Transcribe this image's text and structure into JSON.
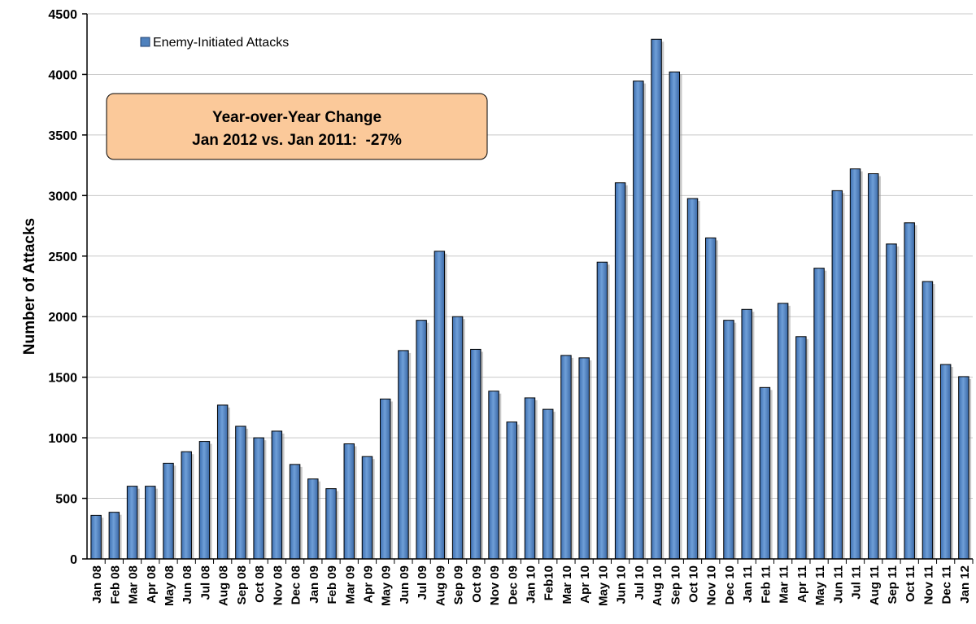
{
  "chart_data": {
    "type": "bar",
    "ylabel": "Number of Attacks",
    "ylim": [
      0,
      4500
    ],
    "yticks": [
      "0",
      "500",
      "1000",
      "1500",
      "2000",
      "2500",
      "3000",
      "3500",
      "4000",
      "4500"
    ],
    "grid": true,
    "legend": {
      "position": "top-left",
      "entries": [
        "Enemy-Initiated Attacks"
      ]
    },
    "annotation": {
      "line1": "Year-over-Year Change",
      "line2": "Jan 2012 vs. Jan 2011:  -27%"
    },
    "categories": [
      "Jan 08",
      "Feb 08",
      "Mar 08",
      "Apr 08",
      "May 08",
      "Jun 08",
      "Jul 08",
      "Aug 08",
      "Sep 08",
      "Oct 08",
      "Nov 08",
      "Dec 08",
      "Jan 09",
      "Feb 09",
      "Mar 09",
      "Apr 09",
      "May 09",
      "Jun 09",
      "Jul 09",
      "Aug 09",
      "Sep 09",
      "Oct 09",
      "Nov 09",
      "Dec 09",
      "Jan 10",
      "Feb10",
      "Mar 10",
      "Apr 10",
      "May 10",
      "Jun 10",
      "Jul 10",
      "Aug 10",
      "Sep 10",
      "Oct 10",
      "Nov 10",
      "Dec 10",
      "Jan 11",
      "Feb 11",
      "Mar 11",
      "Apr 11",
      "May 11",
      "Jun 11",
      "Jul 11",
      "Aug 11",
      "Sep 11",
      "Oct 11",
      "Nov 11",
      "Dec 11",
      "Jan 12"
    ],
    "series": [
      {
        "name": "Enemy-Initiated Attacks",
        "color": "#4f81bd",
        "values": [
          360,
          385,
          600,
          600,
          790,
          885,
          970,
          1270,
          1095,
          1000,
          1055,
          780,
          660,
          580,
          950,
          845,
          1320,
          1720,
          1970,
          2540,
          2000,
          1730,
          1385,
          1130,
          1330,
          1235,
          1680,
          1660,
          2450,
          3105,
          3945,
          4290,
          4020,
          2975,
          2650,
          1970,
          2060,
          1415,
          2110,
          1835,
          2400,
          3040,
          3220,
          3180,
          2600,
          2775,
          2290,
          1605,
          1505
        ]
      }
    ]
  }
}
